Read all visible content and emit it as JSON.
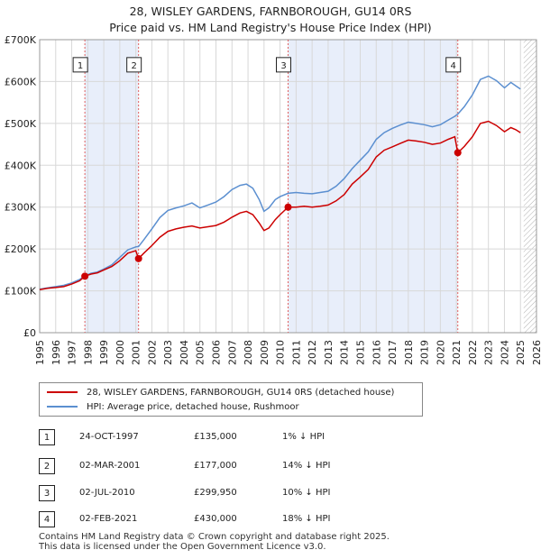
{
  "title_line1": "28, WISLEY GARDENS, FARNBOROUGH, GU14 0RS",
  "title_line2": "Price paid vs. HM Land Registry's House Price Index (HPI)",
  "colors": {
    "price_paid": "#cc0000",
    "hpi": "#5b8fd0",
    "shade": "#e8eefa",
    "grid": "#d8d8d8",
    "marker_line": "#e06060"
  },
  "chart_data": {
    "type": "line",
    "y_tick_labels": [
      "£0",
      "£100K",
      "£200K",
      "£300K",
      "£400K",
      "£500K",
      "£600K",
      "£700K"
    ],
    "y_ticks": [
      0,
      100000,
      200000,
      300000,
      400000,
      500000,
      600000,
      700000
    ],
    "x_tick_labels": [
      "1995",
      "1996",
      "1997",
      "1998",
      "1999",
      "2000",
      "2001",
      "2002",
      "2003",
      "2004",
      "2005",
      "2006",
      "2007",
      "2008",
      "2009",
      "2010",
      "2011",
      "2012",
      "2013",
      "2014",
      "2015",
      "2016",
      "2017",
      "2018",
      "2019",
      "2020",
      "2021",
      "2022",
      "2023",
      "2024",
      "2025",
      "2026"
    ],
    "x_range": [
      1995,
      2026
    ],
    "y_range": [
      0,
      700000
    ],
    "data_end": 2025.2,
    "series": [
      {
        "name": "28, WISLEY GARDENS, FARNBOROUGH, GU14 0RS (detached house)",
        "color": "#cc0000",
        "points": [
          [
            1995.0,
            103000
          ],
          [
            1995.5,
            106000
          ],
          [
            1996.0,
            108000
          ],
          [
            1996.5,
            110000
          ],
          [
            1997.0,
            116000
          ],
          [
            1997.5,
            124000
          ],
          [
            1997.82,
            135000
          ],
          [
            1998.2,
            140000
          ],
          [
            1998.6,
            143000
          ],
          [
            1999.0,
            150000
          ],
          [
            1999.5,
            158000
          ],
          [
            2000.0,
            172000
          ],
          [
            2000.5,
            190000
          ],
          [
            2001.0,
            196000
          ],
          [
            2001.17,
            177000
          ],
          [
            2001.5,
            190000
          ],
          [
            2002.0,
            208000
          ],
          [
            2002.5,
            228000
          ],
          [
            2003.0,
            242000
          ],
          [
            2003.5,
            248000
          ],
          [
            2004.0,
            252000
          ],
          [
            2004.5,
            255000
          ],
          [
            2005.0,
            250000
          ],
          [
            2005.5,
            253000
          ],
          [
            2006.0,
            256000
          ],
          [
            2006.5,
            264000
          ],
          [
            2007.0,
            276000
          ],
          [
            2007.5,
            286000
          ],
          [
            2007.9,
            290000
          ],
          [
            2008.3,
            282000
          ],
          [
            2008.7,
            262000
          ],
          [
            2009.0,
            244000
          ],
          [
            2009.3,
            250000
          ],
          [
            2009.7,
            270000
          ],
          [
            2010.0,
            282000
          ],
          [
            2010.5,
            299950
          ],
          [
            2011.0,
            300000
          ],
          [
            2011.5,
            302000
          ],
          [
            2012.0,
            300000
          ],
          [
            2012.5,
            302000
          ],
          [
            2013.0,
            305000
          ],
          [
            2013.5,
            315000
          ],
          [
            2014.0,
            330000
          ],
          [
            2014.5,
            355000
          ],
          [
            2015.0,
            372000
          ],
          [
            2015.5,
            390000
          ],
          [
            2016.0,
            420000
          ],
          [
            2016.5,
            436000
          ],
          [
            2017.0,
            444000
          ],
          [
            2017.5,
            452000
          ],
          [
            2018.0,
            460000
          ],
          [
            2018.5,
            458000
          ],
          [
            2019.0,
            455000
          ],
          [
            2019.5,
            450000
          ],
          [
            2020.0,
            453000
          ],
          [
            2020.5,
            462000
          ],
          [
            2020.9,
            468000
          ],
          [
            2021.09,
            430000
          ],
          [
            2021.5,
            445000
          ],
          [
            2022.0,
            468000
          ],
          [
            2022.5,
            500000
          ],
          [
            2023.0,
            505000
          ],
          [
            2023.5,
            495000
          ],
          [
            2024.0,
            480000
          ],
          [
            2024.4,
            490000
          ],
          [
            2024.7,
            485000
          ],
          [
            2025.0,
            478000
          ]
        ]
      },
      {
        "name": "HPI: Average price, detached house, Rushmoor",
        "color": "#5b8fd0",
        "points": [
          [
            1995.0,
            104000
          ],
          [
            1995.5,
            107000
          ],
          [
            1996.0,
            110000
          ],
          [
            1996.5,
            113000
          ],
          [
            1997.0,
            119000
          ],
          [
            1997.5,
            127000
          ],
          [
            1997.82,
            136000
          ],
          [
            1998.2,
            142000
          ],
          [
            1998.6,
            145000
          ],
          [
            1999.0,
            152000
          ],
          [
            1999.5,
            162000
          ],
          [
            2000.0,
            180000
          ],
          [
            2000.5,
            198000
          ],
          [
            2001.0,
            205000
          ],
          [
            2001.17,
            206000
          ],
          [
            2001.5,
            222000
          ],
          [
            2002.0,
            248000
          ],
          [
            2002.5,
            275000
          ],
          [
            2003.0,
            292000
          ],
          [
            2003.5,
            298000
          ],
          [
            2004.0,
            303000
          ],
          [
            2004.5,
            310000
          ],
          [
            2005.0,
            298000
          ],
          [
            2005.5,
            305000
          ],
          [
            2006.0,
            312000
          ],
          [
            2006.5,
            325000
          ],
          [
            2007.0,
            342000
          ],
          [
            2007.5,
            352000
          ],
          [
            2007.9,
            355000
          ],
          [
            2008.3,
            345000
          ],
          [
            2008.7,
            318000
          ],
          [
            2009.0,
            290000
          ],
          [
            2009.3,
            298000
          ],
          [
            2009.7,
            318000
          ],
          [
            2010.0,
            325000
          ],
          [
            2010.5,
            333000
          ],
          [
            2011.0,
            335000
          ],
          [
            2011.5,
            333000
          ],
          [
            2012.0,
            332000
          ],
          [
            2012.5,
            335000
          ],
          [
            2013.0,
            338000
          ],
          [
            2013.5,
            350000
          ],
          [
            2014.0,
            368000
          ],
          [
            2014.5,
            392000
          ],
          [
            2015.0,
            412000
          ],
          [
            2015.5,
            432000
          ],
          [
            2016.0,
            462000
          ],
          [
            2016.5,
            478000
          ],
          [
            2017.0,
            488000
          ],
          [
            2017.5,
            496000
          ],
          [
            2018.0,
            503000
          ],
          [
            2018.5,
            500000
          ],
          [
            2019.0,
            497000
          ],
          [
            2019.5,
            492000
          ],
          [
            2020.0,
            497000
          ],
          [
            2020.5,
            508000
          ],
          [
            2020.9,
            517000
          ],
          [
            2021.09,
            522000
          ],
          [
            2021.5,
            540000
          ],
          [
            2022.0,
            568000
          ],
          [
            2022.5,
            605000
          ],
          [
            2023.0,
            613000
          ],
          [
            2023.5,
            602000
          ],
          [
            2024.0,
            585000
          ],
          [
            2024.4,
            598000
          ],
          [
            2024.7,
            590000
          ],
          [
            2025.0,
            582000
          ]
        ]
      }
    ],
    "purchases": [
      {
        "num": "1",
        "x": 1997.82,
        "price": 135000
      },
      {
        "num": "2",
        "x": 2001.17,
        "price": 177000
      },
      {
        "num": "3",
        "x": 2010.5,
        "price": 299950
      },
      {
        "num": "4",
        "x": 2021.09,
        "price": 430000
      }
    ],
    "shaded_ranges": [
      [
        1997.82,
        2001.17
      ],
      [
        2010.5,
        2021.09
      ]
    ],
    "box_y": 640000
  },
  "legend": {
    "price_label": "28, WISLEY GARDENS, FARNBOROUGH, GU14 0RS (detached house)",
    "hpi_label": "HPI: Average price, detached house, Rushmoor"
  },
  "transactions": [
    {
      "num": "1",
      "date": "24-OCT-1997",
      "price": "£135,000",
      "hpi": "1% ↓ HPI"
    },
    {
      "num": "2",
      "date": "02-MAR-2001",
      "price": "£177,000",
      "hpi": "14% ↓ HPI"
    },
    {
      "num": "3",
      "date": "02-JUL-2010",
      "price": "£299,950",
      "hpi": "10% ↓ HPI"
    },
    {
      "num": "4",
      "date": "02-FEB-2021",
      "price": "£430,000",
      "hpi": "18% ↓ HPI"
    }
  ],
  "footer": {
    "line1": "Contains HM Land Registry data © Crown copyright and database right 2025.",
    "line2": "This data is licensed under the Open Government Licence v3.0."
  }
}
